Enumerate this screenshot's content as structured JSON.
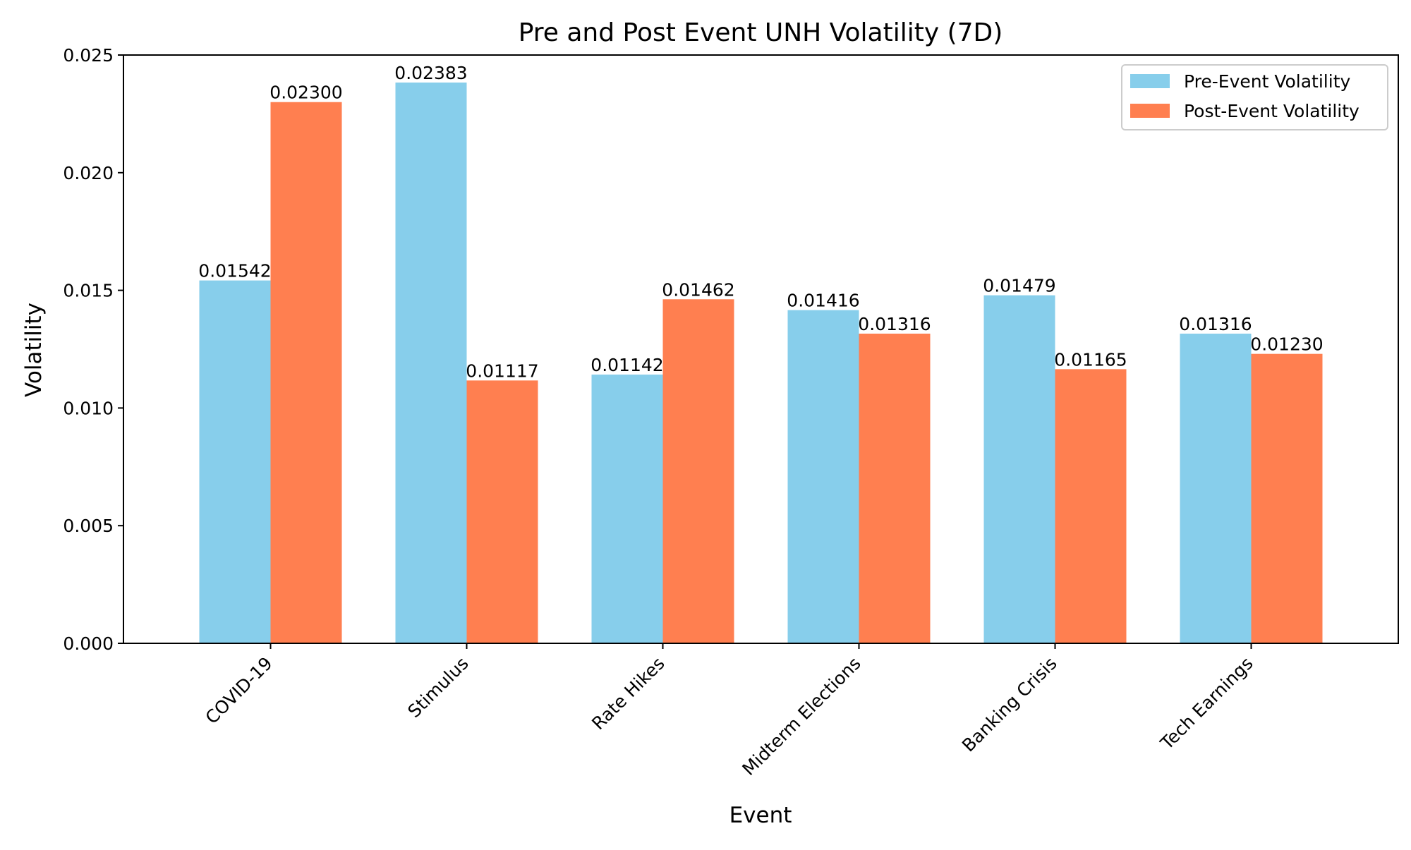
{
  "chart_data": {
    "type": "bar",
    "title": "Pre and Post Event UNH Volatility (7D)",
    "xlabel": "Event",
    "ylabel": "Volatility",
    "categories": [
      "COVID-19",
      "Stimulus",
      "Rate Hikes",
      "Midterm Elections",
      "Banking Crisis",
      "Tech Earnings"
    ],
    "series": [
      {
        "name": "Pre-Event Volatility",
        "color": "#87CEEB",
        "values": [
          0.01542,
          0.02383,
          0.01142,
          0.01416,
          0.01479,
          0.01316
        ],
        "labels": [
          "0.01542",
          "0.02383",
          "0.01142",
          "0.01416",
          "0.01479",
          "0.01316"
        ]
      },
      {
        "name": "Post-Event Volatility",
        "color": "#FF7F50",
        "values": [
          0.023,
          0.01117,
          0.01462,
          0.01316,
          0.01165,
          0.0123
        ],
        "labels": [
          "0.02300",
          "0.01117",
          "0.01462",
          "0.01316",
          "0.01165",
          "0.01230"
        ]
      }
    ],
    "ylim": [
      0,
      0.025
    ],
    "yticks": [
      "0.000",
      "0.005",
      "0.010",
      "0.015",
      "0.020",
      "0.025"
    ],
    "ytick_values": [
      0,
      0.005,
      0.01,
      0.015,
      0.02,
      0.025
    ],
    "grid": false,
    "legend": "top-right",
    "xtick_rotation": "45 degrees"
  }
}
